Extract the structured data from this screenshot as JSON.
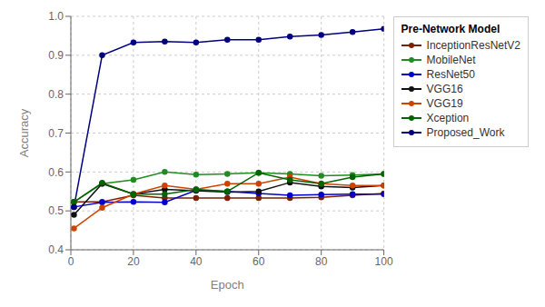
{
  "chart_data": {
    "type": "line",
    "title": "Pre-Network Model",
    "xlabel": "Epoch",
    "ylabel": "Accuracy",
    "x": [
      1,
      10,
      20,
      30,
      40,
      50,
      60,
      70,
      80,
      90,
      100
    ],
    "series": [
      {
        "name": "InceptionResNetV2",
        "color": "#7B2000",
        "values": [
          0.523,
          0.523,
          0.54,
          0.533,
          0.533,
          0.533,
          0.533,
          0.533,
          0.535,
          0.54,
          0.545
        ]
      },
      {
        "name": "MobileNet",
        "color": "#228B22",
        "values": [
          0.523,
          0.57,
          0.58,
          0.6,
          0.593,
          0.595,
          0.598,
          0.595,
          0.59,
          0.592,
          0.595
        ]
      },
      {
        "name": "ResNet50",
        "color": "#0000CC",
        "values": [
          0.51,
          0.522,
          0.523,
          0.522,
          0.553,
          0.55,
          0.545,
          0.54,
          0.542,
          0.543,
          0.543
        ]
      },
      {
        "name": "VGG16",
        "color": "#111111",
        "values": [
          0.49,
          0.57,
          0.543,
          0.555,
          0.552,
          0.548,
          0.55,
          0.573,
          0.563,
          0.56,
          0.565
        ]
      },
      {
        "name": "VGG19",
        "color": "#CC4400",
        "values": [
          0.455,
          0.508,
          0.543,
          0.565,
          0.555,
          0.57,
          0.57,
          0.587,
          0.57,
          0.565,
          0.565
        ]
      },
      {
        "name": "Xception",
        "color": "#006400",
        "values": [
          0.523,
          0.572,
          0.543,
          0.543,
          0.555,
          0.55,
          0.598,
          0.58,
          0.57,
          0.587,
          0.595
        ]
      },
      {
        "name": "Proposed_Work",
        "color": "#000080",
        "values": [
          0.51,
          0.9,
          0.933,
          0.935,
          0.933,
          0.94,
          0.94,
          0.948,
          0.952,
          0.96,
          0.968
        ]
      }
    ],
    "xlim": [
      0,
      100
    ],
    "xticks": [
      0,
      20,
      40,
      60,
      80,
      100
    ],
    "ylim": [
      0.4,
      1.0
    ],
    "yticks": [
      0.4,
      0.5,
      0.6,
      0.7,
      0.8,
      0.9,
      {
        "value": 1.0,
        "label": "1.0"
      }
    ],
    "grid": true,
    "legend": "upper right",
    "marker": "o"
  }
}
